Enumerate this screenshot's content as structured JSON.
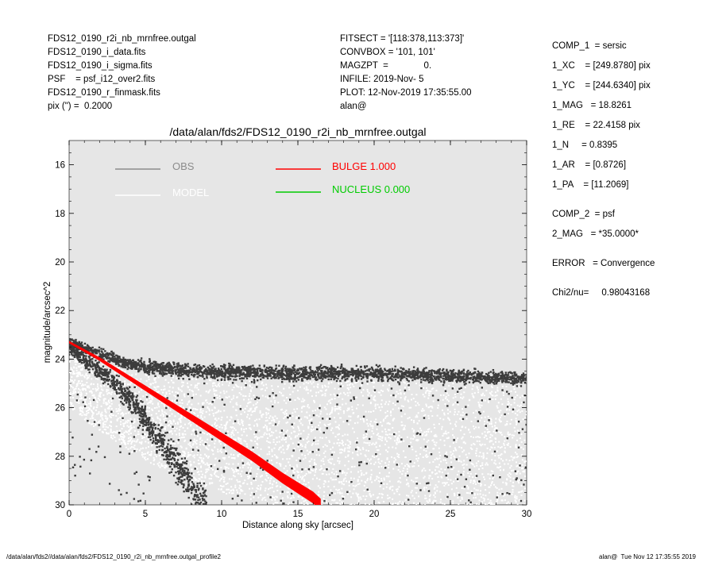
{
  "header_left": [
    "FDS12_0190_r2i_nb_mrnfree.outgal",
    "FDS12_0190_i_data.fits",
    "FDS12_0190_i_sigma.fits",
    "PSF    = psf_i12_over2.fits",
    "FDS12_0190_r_finmask.fits",
    "pix (\") =  0.2000"
  ],
  "header_mid": [
    "FITSECT = '[118:378,113:373]'",
    "CONVBOX = '101, 101'",
    "MAGZPT  =              0.",
    "INFILE: 2019-Nov- 5",
    "PLOT: 12-Nov-2019 17:35:55.00",
    "alan@"
  ],
  "header_right": [
    {
      "text": "COMP_1  = sersic",
      "gap": 0
    },
    {
      "text": "1_XC    = [249.8780] pix",
      "gap": 1
    },
    {
      "text": "1_YC    = [244.6340] pix",
      "gap": 1
    },
    {
      "text": "1_MAG   = 18.8261",
      "gap": 1
    },
    {
      "text": "1_RE    = 22.4158 pix",
      "gap": 1
    },
    {
      "text": "1_N     = 0.8395",
      "gap": 1
    },
    {
      "text": "1_AR    = [0.8726]",
      "gap": 1
    },
    {
      "text": "1_PA    = [11.2069]",
      "gap": 1
    },
    {
      "text": "COMP_2  = psf",
      "gap": 1.5
    },
    {
      "text": "2_MAG   = *35.0000*",
      "gap": 1
    },
    {
      "text": "ERROR   = Convergence",
      "gap": 1.5
    },
    {
      "text": "Chi2/nu=     0.98043168",
      "gap": 1.5
    }
  ],
  "footer_left": "/data/alan/fds2//data/alan/fds2/FDS12_0190_r2i_nb_mrnfree.outgal_profile2",
  "footer_right": "alan@  Tue Nov 12 17:35:55 2019",
  "chart_data": {
    "type": "scatter",
    "title": "/data/alan/fds2/FDS12_0190_r2i_nb_mrnfree.outgal",
    "xlabel": "Distance along sky [arcsec]",
    "ylabel": "magnitude/arcsec^2",
    "xlim": [
      0,
      30
    ],
    "ylim": [
      30,
      15
    ],
    "y_inverted": true,
    "xticks": [
      0,
      5,
      10,
      15,
      20,
      25,
      30
    ],
    "yticks": [
      16,
      18,
      20,
      22,
      24,
      26,
      28,
      30
    ],
    "background": "#e6e6e6",
    "legend": [
      {
        "label": "OBS",
        "color": "#8c8c8c"
      },
      {
        "label": "MODEL",
        "color": "#ffffff"
      },
      {
        "label": "BULGE  1.000",
        "color": "#ff0000"
      },
      {
        "label": "NUCLEUS  0.000",
        "color": "#00cc00"
      }
    ],
    "series": [
      {
        "name": "OBS",
        "color": "#3c3c3c",
        "description_points": [
          [
            0.5,
            23.4
          ],
          [
            1,
            23.55
          ],
          [
            2,
            23.8
          ],
          [
            3,
            24.0
          ],
          [
            4,
            24.2
          ],
          [
            5,
            24.3
          ],
          [
            7,
            24.45
          ],
          [
            10,
            24.55
          ],
          [
            15,
            24.6
          ],
          [
            20,
            24.6
          ],
          [
            25,
            24.7
          ],
          [
            30,
            24.8
          ]
        ],
        "lower_envelope": [
          [
            0.2,
            23.6
          ],
          [
            1,
            24.0
          ],
          [
            2,
            24.5
          ],
          [
            3,
            25.0
          ],
          [
            4,
            25.7
          ],
          [
            5,
            26.5
          ],
          [
            6,
            27.4
          ],
          [
            7,
            28.3
          ],
          [
            8,
            29.2
          ],
          [
            9,
            30.0
          ]
        ]
      },
      {
        "name": "MODEL",
        "color": "#ffffff",
        "points": [
          [
            0.5,
            24.0
          ],
          [
            2,
            24.8
          ],
          [
            4,
            25.6
          ],
          [
            6,
            26.3
          ],
          [
            8,
            26.8
          ],
          [
            10,
            27.3
          ],
          [
            15,
            28.0
          ],
          [
            20,
            28.6
          ],
          [
            25,
            29.0
          ],
          [
            30,
            29.4
          ]
        ]
      },
      {
        "name": "BULGE  1.000",
        "color": "#ff0000",
        "points": [
          [
            0,
            23.3
          ],
          [
            2,
            24.0
          ],
          [
            4,
            24.8
          ],
          [
            6,
            25.6
          ],
          [
            8,
            26.4
          ],
          [
            10,
            27.2
          ],
          [
            12,
            28.0
          ],
          [
            14,
            28.9
          ],
          [
            16,
            29.7
          ],
          [
            16.5,
            30.0
          ]
        ]
      }
    ]
  }
}
